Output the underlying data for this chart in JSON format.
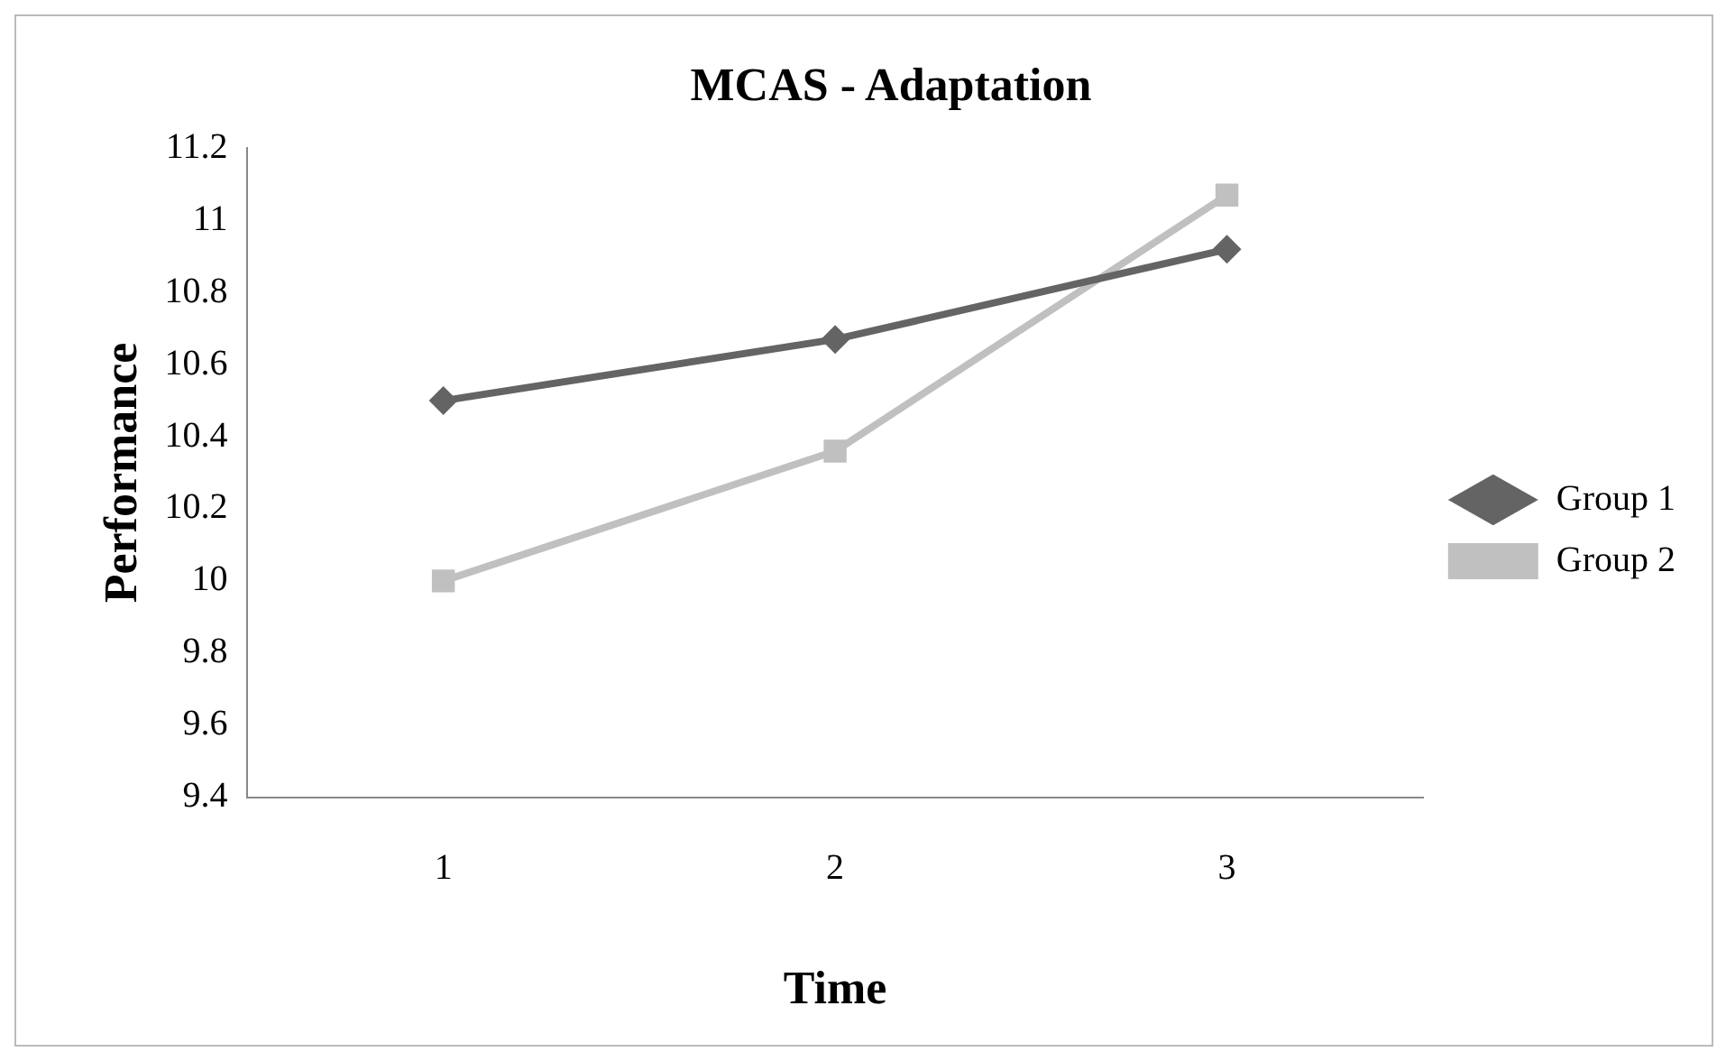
{
  "chart_data": {
    "type": "line",
    "title": "MCAS - Adaptation",
    "xlabel": "Time",
    "ylabel": "Performance",
    "categories": [
      "1",
      "2",
      "3"
    ],
    "series": [
      {
        "name": "Group 1",
        "color": "#646464",
        "values": [
          10.5,
          10.67,
          10.92
        ],
        "marker": "diamond"
      },
      {
        "name": "Group 2",
        "color": "#c0c0c0",
        "values": [
          10.0,
          10.36,
          11.07
        ],
        "marker": "square"
      }
    ],
    "ylim": [
      9.4,
      11.2
    ],
    "yticks": [
      9.4,
      9.6,
      9.8,
      10,
      10.2,
      10.4,
      10.6,
      10.8,
      11,
      11.2
    ],
    "grid": false,
    "legend": "right",
    "line_style": "solid"
  }
}
